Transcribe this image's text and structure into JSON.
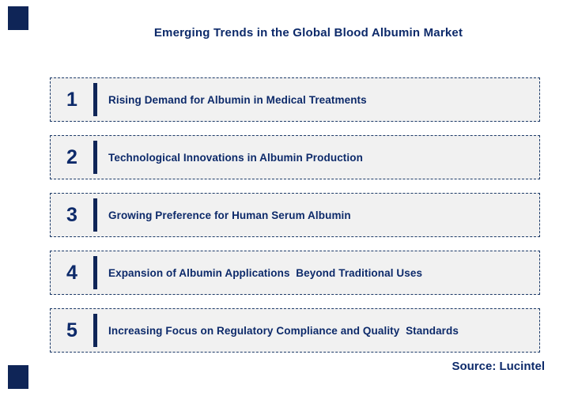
{
  "page": {
    "title": "Emerging Trends in the Global Blood Albumin Market",
    "source": "Source: Lucintel"
  },
  "trends": [
    {
      "number": "1",
      "label": "Rising Demand for Albumin in Medical Treatments"
    },
    {
      "number": "2",
      "label": "Technological Innovations in Albumin Production"
    },
    {
      "number": "3",
      "label": "Growing Preference for Human Serum Albumin"
    },
    {
      "number": "4",
      "label": "Expansion of Albumin Applications  Beyond Traditional Uses"
    },
    {
      "number": "5",
      "label": "Increasing Focus on Regulatory Compliance and Quality  Standards"
    }
  ],
  "colors": {
    "navy_text": "#0d2a6a",
    "navy_bar": "#0f2557",
    "navy_border": "#1c3a68",
    "box_fill": "#f1f1f1",
    "background": "#ffffff"
  }
}
